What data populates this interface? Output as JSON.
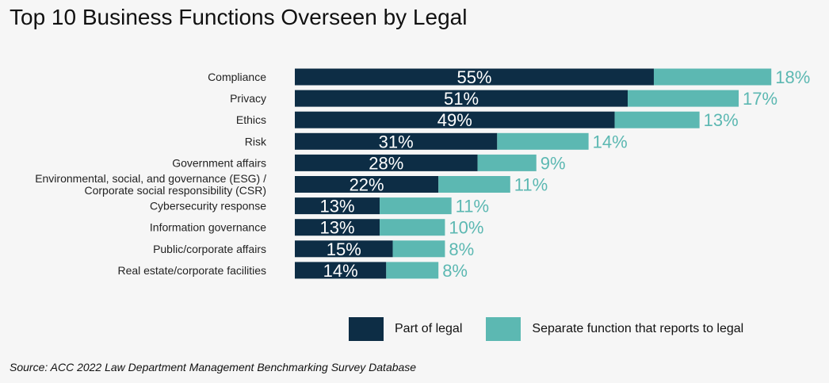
{
  "title": "Top 10 Business Functions Overseen by Legal",
  "source": "Source: ACC 2022 Law Department Management Benchmarking Survey Database",
  "chart_data": {
    "type": "bar",
    "orientation": "horizontal",
    "stacked": true,
    "title": "Top 10 Business Functions Overseen by Legal",
    "categories": [
      "Compliance",
      "Privacy",
      "Ethics",
      "Risk",
      "Government affairs",
      [
        "Environmental, social, and governance (ESG) /",
        "Corporate social responsibility (CSR)"
      ],
      "Cybersecurity response",
      "Information governance",
      "Public/corporate affairs",
      "Real estate/corporate facilities"
    ],
    "series": [
      {
        "name": "Part of legal",
        "color": "#0d2d45",
        "values": [
          55,
          51,
          49,
          31,
          28,
          22,
          13,
          13,
          15,
          14
        ]
      },
      {
        "name": "Separate function that reports to legal",
        "color": "#5cb8b2",
        "values": [
          18,
          17,
          13,
          14,
          9,
          11,
          11,
          10,
          8,
          8
        ]
      }
    ],
    "grid": false,
    "legend": "bottom"
  }
}
